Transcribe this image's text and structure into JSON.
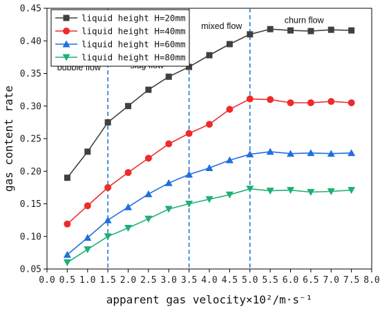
{
  "chart_data": {
    "type": "line",
    "xlabel": "apparent gas velocity×10²/m·s⁻¹",
    "ylabel": "gas content rate",
    "xlim": [
      0.0,
      8.0
    ],
    "ylim": [
      0.05,
      0.45
    ],
    "x_ticks": [
      "0.0",
      "0.5",
      "1.0",
      "1.5",
      "2.0",
      "2.5",
      "3.0",
      "3.5",
      "4.0",
      "4.5",
      "5.0",
      "5.5",
      "6.0",
      "6.5",
      "7.0",
      "7.5",
      "8.0"
    ],
    "y_ticks": [
      "0.05",
      "0.10",
      "0.15",
      "0.20",
      "0.25",
      "0.30",
      "0.35",
      "0.40",
      "0.45"
    ],
    "x": [
      0.5,
      1.0,
      1.5,
      2.0,
      2.5,
      3.0,
      3.5,
      4.0,
      4.5,
      5.0,
      5.5,
      6.0,
      6.5,
      7.0,
      7.5
    ],
    "series": [
      {
        "name": "liquid height H=20mm",
        "color": "#404040",
        "marker": "square",
        "values": [
          0.19,
          0.23,
          0.275,
          0.3,
          0.325,
          0.345,
          0.36,
          0.378,
          0.395,
          0.41,
          0.418,
          0.416,
          0.415,
          0.417,
          0.416
        ]
      },
      {
        "name": "liquid height H=40mm",
        "color": "#ee2a2a",
        "marker": "circle",
        "values": [
          0.119,
          0.147,
          0.175,
          0.198,
          0.22,
          0.242,
          0.258,
          0.272,
          0.295,
          0.311,
          0.31,
          0.305,
          0.305,
          0.307,
          0.305
        ]
      },
      {
        "name": "liquid height H=60mm",
        "color": "#1f6fe0",
        "marker": "triangle-up",
        "values": [
          0.072,
          0.098,
          0.125,
          0.145,
          0.165,
          0.182,
          0.195,
          0.205,
          0.217,
          0.226,
          0.23,
          0.227,
          0.228,
          0.227,
          0.228
        ]
      },
      {
        "name": "liquid height H=80mm",
        "color": "#1db073",
        "marker": "triangle-down",
        "values": [
          0.06,
          0.08,
          0.1,
          0.113,
          0.127,
          0.142,
          0.15,
          0.157,
          0.164,
          0.173,
          0.17,
          0.171,
          0.168,
          0.169,
          0.171
        ]
      }
    ],
    "region_dividers": [
      1.5,
      3.5,
      5.0
    ],
    "regions": [
      {
        "label": "bubble flow",
        "x": 0.25,
        "y": 0.355
      },
      {
        "label": "slug flow",
        "x": 2.05,
        "y": 0.358
      },
      {
        "label": "mixed flow",
        "x": 3.8,
        "y": 0.418
      },
      {
        "label": "churn flow",
        "x": 5.85,
        "y": 0.427
      }
    ],
    "legend_position": "top-left",
    "grid": false
  }
}
